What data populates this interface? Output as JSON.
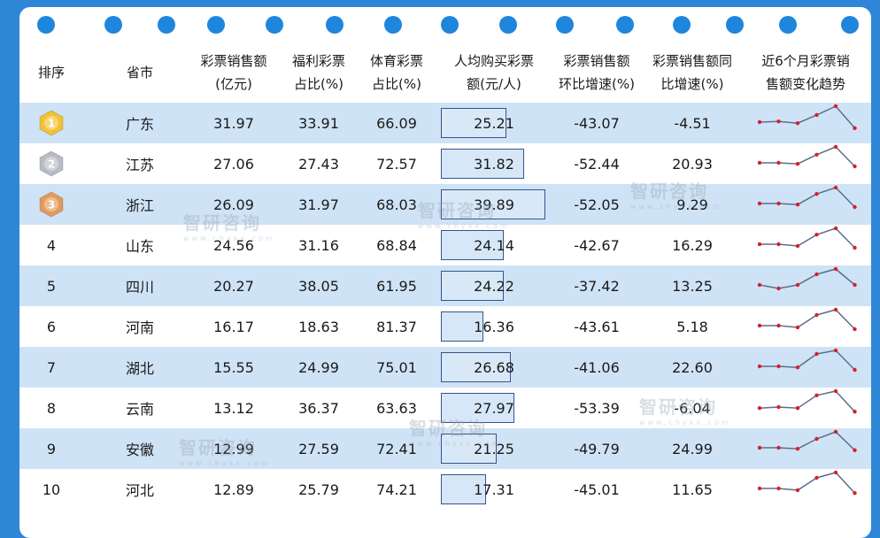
{
  "chart_data": {
    "type": "table",
    "columns": [
      "排序",
      "省市",
      "彩票销售额\n(亿元)",
      "福利彩票\n占比(%)",
      "体育彩票\n占比(%)",
      "人均购买彩票\n额(元/人)",
      "彩票销售额\n环比增速(%)",
      "彩票销售额同\n比增速(%)",
      "近6个月彩票销\n售额变化趋势"
    ],
    "rows": [
      {
        "rank": "1",
        "province": "广东",
        "sales": "31.97",
        "welfare": "33.91",
        "sports": "66.09",
        "per_capita": "25.21",
        "mom": "-43.07",
        "yoy": "-4.51",
        "trend": [
          0.55,
          0.57,
          0.52,
          0.75,
          1.0,
          0.38
        ]
      },
      {
        "rank": "2",
        "province": "江苏",
        "sales": "27.06",
        "welfare": "27.43",
        "sports": "72.57",
        "per_capita": "31.82",
        "mom": "-52.44",
        "yoy": "20.93",
        "trend": [
          0.55,
          0.55,
          0.52,
          0.78,
          1.0,
          0.45
        ]
      },
      {
        "rank": "3",
        "province": "浙江",
        "sales": "26.09",
        "welfare": "31.97",
        "sports": "68.03",
        "per_capita": "39.89",
        "mom": "-52.05",
        "yoy": "9.29",
        "trend": [
          0.55,
          0.55,
          0.52,
          0.82,
          1.0,
          0.45
        ]
      },
      {
        "rank": "4",
        "province": "山东",
        "sales": "24.56",
        "welfare": "31.16",
        "sports": "68.84",
        "per_capita": "24.14",
        "mom": "-42.67",
        "yoy": "16.29",
        "trend": [
          0.55,
          0.55,
          0.5,
          0.82,
          1.0,
          0.45
        ]
      },
      {
        "rank": "5",
        "province": "四川",
        "sales": "20.27",
        "welfare": "38.05",
        "sports": "61.95",
        "per_capita": "24.22",
        "mom": "-37.42",
        "yoy": "13.25",
        "trend": [
          0.55,
          0.45,
          0.55,
          0.85,
          1.0,
          0.55
        ]
      },
      {
        "rank": "6",
        "province": "河南",
        "sales": "16.17",
        "welfare": "18.63",
        "sports": "81.37",
        "per_capita": "16.36",
        "mom": "-43.61",
        "yoy": "5.18",
        "trend": [
          0.55,
          0.55,
          0.5,
          0.85,
          1.0,
          0.45
        ]
      },
      {
        "rank": "7",
        "province": "湖北",
        "sales": "15.55",
        "welfare": "24.99",
        "sports": "75.01",
        "per_capita": "26.68",
        "mom": "-41.06",
        "yoy": "22.60",
        "trend": [
          0.55,
          0.55,
          0.52,
          0.9,
          1.0,
          0.45
        ]
      },
      {
        "rank": "8",
        "province": "云南",
        "sales": "13.12",
        "welfare": "36.37",
        "sports": "63.63",
        "per_capita": "27.97",
        "mom": "-53.39",
        "yoy": "-6.04",
        "trend": [
          0.52,
          0.55,
          0.52,
          0.88,
          1.0,
          0.42
        ]
      },
      {
        "rank": "9",
        "province": "安徽",
        "sales": "12.99",
        "welfare": "27.59",
        "sports": "72.41",
        "per_capita": "21.25",
        "mom": "-49.79",
        "yoy": "24.99",
        "trend": [
          0.55,
          0.55,
          0.52,
          0.8,
          1.0,
          0.48
        ]
      },
      {
        "rank": "10",
        "province": "河北",
        "sales": "12.89",
        "welfare": "25.79",
        "sports": "74.21",
        "per_capita": "17.31",
        "mom": "-45.01",
        "yoy": "11.65",
        "trend": [
          0.55,
          0.55,
          0.5,
          0.85,
          1.0,
          0.42
        ]
      }
    ],
    "per_capita_bar_max": 40
  },
  "watermark": {
    "name": "智研咨询",
    "url": "www.chyxx.com"
  },
  "colors": {
    "background": "#2f86d6",
    "dot": "#1f86dd",
    "row_alt": "#cfe3f6",
    "bar_border": "#35548a",
    "spark_line": "#5a6e8c",
    "spark_dot": "#d6202a",
    "gold": "#f1c232",
    "silver": "#b8bcc4",
    "bronze": "#e39a5b"
  },
  "icons": {
    "rank1": "gold-medal-icon",
    "rank2": "silver-medal-icon",
    "rank3": "bronze-medal-icon"
  }
}
